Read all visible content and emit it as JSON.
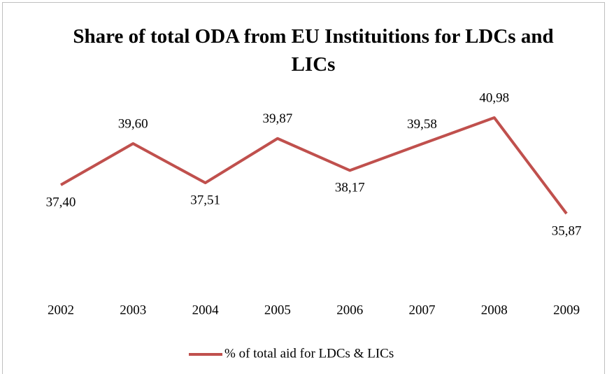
{
  "chart_data": {
    "type": "line",
    "title": "Share of  total ODA from EU Instituitions for LDCs and LICs",
    "categories": [
      "2002",
      "2003",
      "2004",
      "2005",
      "2006",
      "2007",
      "2008",
      "2009"
    ],
    "series": [
      {
        "name": "% of total aid for LDCs & LICs",
        "color": "#c0504d",
        "values": [
          37.4,
          39.6,
          37.51,
          39.87,
          38.17,
          39.58,
          40.98,
          35.87
        ],
        "value_labels": [
          "37,40",
          "39,60",
          "37,51",
          "39,87",
          "38,17",
          "39,58",
          "40,98",
          "35,87"
        ]
      }
    ]
  }
}
